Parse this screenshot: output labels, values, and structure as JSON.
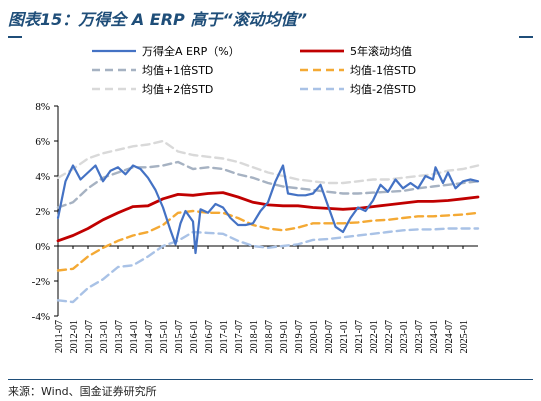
{
  "title": "图表15：万得全 A ERP 高于“滚动均值”",
  "source": "来源：Wind、国金证券研究所",
  "colors": {
    "title": "#1f4e79",
    "erp": "#4472c4",
    "mean": "#c00000",
    "std_plus1": "#a6b2c2",
    "std_minus1": "#f4a934",
    "std_plus2": "#d9d9d9",
    "std_minus2": "#a9c2e6"
  },
  "chart_data": {
    "type": "line",
    "ylim": [
      -4,
      8
    ],
    "yticks": [
      -4,
      -2,
      0,
      2,
      4,
      6,
      8
    ],
    "ytick_labels": [
      "-4%",
      "-2%",
      "0%",
      "2%",
      "4%",
      "6%",
      "8%"
    ],
    "xlim": [
      "2011-07",
      "2025-07"
    ],
    "xtick_labels": [
      "2011-07",
      "2012-01",
      "2012-07",
      "2013-01",
      "2013-07",
      "2014-01",
      "2014-07",
      "2015-01",
      "2015-07",
      "2016-01",
      "2016-07",
      "2017-01",
      "2017-07",
      "2018-01",
      "2018-07",
      "2019-01",
      "2019-07",
      "2020-01",
      "2020-07",
      "2021-01",
      "2021-07",
      "2022-01",
      "2022-07",
      "2023-01",
      "2023-07",
      "2024-01",
      "2024-07",
      "2025-01"
    ],
    "legend": [
      {
        "key": "erp",
        "label": "万得全A ERP（%）"
      },
      {
        "key": "mean",
        "label": "5年滚动均值"
      },
      {
        "key": "std_plus1",
        "label": "均值+1倍STD"
      },
      {
        "key": "std_minus1",
        "label": "均值-1倍STD"
      },
      {
        "key": "std_plus2",
        "label": "均值+2倍STD"
      },
      {
        "key": "std_minus2",
        "label": "均值-2倍STD"
      }
    ],
    "series": [
      {
        "key": "erp",
        "name": "万得全A ERP（%）",
        "x": [
          "2011-07",
          "2011-10",
          "2012-01",
          "2012-04",
          "2012-07",
          "2012-10",
          "2013-01",
          "2013-04",
          "2013-07",
          "2013-10",
          "2014-01",
          "2014-04",
          "2014-07",
          "2014-10",
          "2015-01",
          "2015-04",
          "2015-06",
          "2015-08",
          "2015-10",
          "2016-01",
          "2016-02",
          "2016-04",
          "2016-07",
          "2016-10",
          "2017-01",
          "2017-04",
          "2017-07",
          "2017-10",
          "2018-01",
          "2018-04",
          "2018-07",
          "2018-10",
          "2019-01",
          "2019-03",
          "2019-07",
          "2019-10",
          "2020-01",
          "2020-04",
          "2020-07",
          "2020-10",
          "2021-01",
          "2021-04",
          "2021-07",
          "2021-10",
          "2022-01",
          "2022-04",
          "2022-07",
          "2022-10",
          "2023-01",
          "2023-04",
          "2023-07",
          "2023-10",
          "2024-01",
          "2024-02",
          "2024-05",
          "2024-07",
          "2024-10",
          "2025-01",
          "2025-04",
          "2025-07"
        ],
        "y": [
          1.6,
          3.7,
          4.6,
          3.8,
          4.2,
          4.6,
          3.7,
          4.3,
          4.5,
          4.1,
          4.6,
          4.4,
          3.9,
          3.2,
          2.2,
          0.9,
          0.1,
          1.3,
          2.0,
          1.4,
          -0.4,
          2.1,
          1.9,
          2.4,
          2.2,
          1.6,
          1.2,
          1.2,
          1.3,
          2.0,
          2.5,
          3.7,
          4.6,
          3.0,
          2.9,
          2.9,
          3.0,
          3.5,
          2.3,
          1.1,
          0.8,
          1.6,
          2.2,
          2.0,
          2.6,
          3.5,
          3.1,
          3.8,
          3.3,
          3.6,
          3.3,
          4.0,
          3.8,
          4.5,
          3.6,
          4.2,
          3.3,
          3.7,
          3.8,
          3.7
        ]
      },
      {
        "key": "mean",
        "name": "5年滚动均值",
        "x": [
          "2011-07",
          "2012-01",
          "2012-07",
          "2013-01",
          "2013-07",
          "2014-01",
          "2014-07",
          "2015-01",
          "2015-07",
          "2016-01",
          "2016-07",
          "2017-01",
          "2017-07",
          "2018-01",
          "2018-07",
          "2019-01",
          "2019-07",
          "2020-01",
          "2020-07",
          "2021-01",
          "2021-07",
          "2022-01",
          "2022-07",
          "2023-01",
          "2023-07",
          "2024-01",
          "2024-07",
          "2025-01",
          "2025-07"
        ],
        "y": [
          0.3,
          0.6,
          1.0,
          1.5,
          1.9,
          2.25,
          2.3,
          2.7,
          2.95,
          2.9,
          3.0,
          3.05,
          2.8,
          2.5,
          2.35,
          2.3,
          2.3,
          2.2,
          2.15,
          2.1,
          2.15,
          2.25,
          2.35,
          2.45,
          2.55,
          2.55,
          2.6,
          2.7,
          2.8
        ]
      },
      {
        "key": "std_plus1",
        "name": "均值+1倍STD",
        "x": [
          "2011-07",
          "2012-01",
          "2012-07",
          "2013-01",
          "2013-07",
          "2014-01",
          "2014-07",
          "2015-01",
          "2015-07",
          "2016-01",
          "2016-07",
          "2017-01",
          "2017-07",
          "2018-01",
          "2018-07",
          "2019-01",
          "2019-07",
          "2020-01",
          "2020-07",
          "2021-01",
          "2021-07",
          "2022-01",
          "2022-07",
          "2023-01",
          "2023-07",
          "2024-01",
          "2024-07",
          "2025-01",
          "2025-07"
        ],
        "y": [
          2.2,
          2.5,
          3.3,
          3.9,
          4.2,
          4.5,
          4.5,
          4.6,
          4.8,
          4.4,
          4.5,
          4.4,
          4.1,
          3.9,
          3.6,
          3.4,
          3.3,
          3.2,
          3.1,
          3.0,
          3.0,
          3.05,
          3.1,
          3.15,
          3.3,
          3.4,
          3.5,
          3.6,
          3.7
        ]
      },
      {
        "key": "std_minus1",
        "name": "均值-1倍STD",
        "x": [
          "2011-07",
          "2012-01",
          "2012-07",
          "2013-01",
          "2013-07",
          "2014-01",
          "2014-07",
          "2015-01",
          "2015-07",
          "2016-01",
          "2016-07",
          "2017-01",
          "2017-07",
          "2018-01",
          "2018-07",
          "2019-01",
          "2019-07",
          "2020-01",
          "2020-07",
          "2021-01",
          "2021-07",
          "2022-01",
          "2022-07",
          "2023-01",
          "2023-07",
          "2024-01",
          "2024-07",
          "2025-01",
          "2025-07"
        ],
        "y": [
          -1.4,
          -1.3,
          -0.6,
          -0.1,
          0.3,
          0.6,
          0.8,
          1.2,
          1.9,
          2.0,
          1.9,
          1.9,
          1.6,
          1.2,
          1.0,
          0.9,
          1.05,
          1.3,
          1.3,
          1.3,
          1.35,
          1.45,
          1.5,
          1.6,
          1.7,
          1.7,
          1.75,
          1.8,
          1.9
        ]
      },
      {
        "key": "std_plus2",
        "name": "均值+2倍STD",
        "x": [
          "2011-07",
          "2012-01",
          "2012-07",
          "2013-01",
          "2013-07",
          "2014-01",
          "2014-07",
          "2015-01",
          "2015-07",
          "2016-01",
          "2016-07",
          "2017-01",
          "2017-07",
          "2018-01",
          "2018-07",
          "2019-01",
          "2019-07",
          "2020-01",
          "2020-07",
          "2021-01",
          "2021-07",
          "2022-01",
          "2022-07",
          "2023-01",
          "2023-07",
          "2024-01",
          "2024-07",
          "2025-01",
          "2025-07"
        ],
        "y": [
          3.9,
          4.4,
          5.0,
          5.3,
          5.5,
          5.7,
          5.8,
          6.0,
          5.4,
          5.2,
          5.1,
          5.0,
          4.8,
          4.5,
          4.2,
          4.0,
          3.8,
          3.7,
          3.6,
          3.6,
          3.7,
          3.8,
          3.8,
          3.9,
          4.0,
          4.1,
          4.3,
          4.4,
          4.6
        ]
      },
      {
        "key": "std_minus2",
        "name": "均值-2倍STD",
        "x": [
          "2011-07",
          "2012-01",
          "2012-07",
          "2013-01",
          "2013-07",
          "2014-01",
          "2014-07",
          "2015-01",
          "2015-07",
          "2016-01",
          "2016-07",
          "2017-01",
          "2017-07",
          "2018-01",
          "2018-07",
          "2019-01",
          "2019-07",
          "2020-01",
          "2020-07",
          "2021-01",
          "2021-07",
          "2022-01",
          "2022-07",
          "2023-01",
          "2023-07",
          "2024-01",
          "2024-07",
          "2025-01",
          "2025-07"
        ],
        "y": [
          -3.1,
          -3.2,
          -2.4,
          -1.9,
          -1.2,
          -1.1,
          -0.6,
          0.0,
          0.3,
          0.8,
          0.75,
          0.7,
          0.3,
          0.0,
          -0.1,
          0.0,
          0.1,
          0.35,
          0.4,
          0.5,
          0.6,
          0.7,
          0.8,
          0.9,
          0.95,
          0.95,
          1.0,
          1.0,
          1.0
        ]
      }
    ]
  }
}
